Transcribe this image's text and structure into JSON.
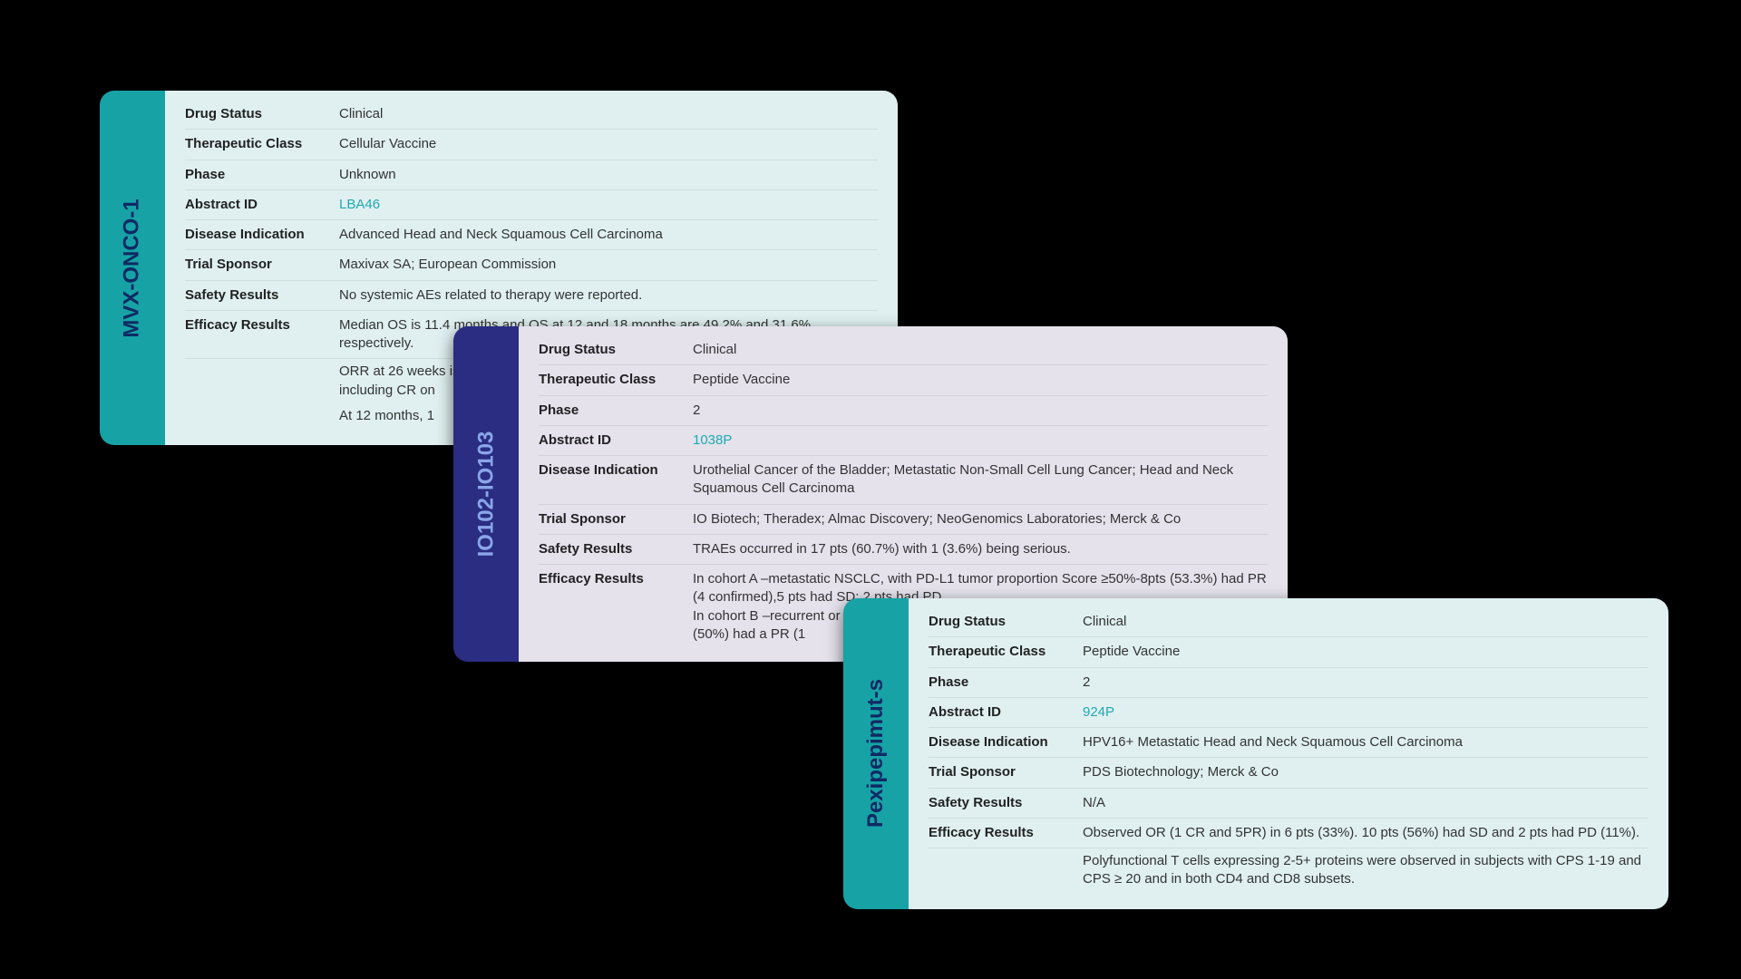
{
  "background_color": "#000000",
  "cards": [
    {
      "id": "card-0",
      "title": "MVX-ONCO-1",
      "tab_bg": "#17a2a6",
      "tab_text_color": "#0f2a63",
      "body_bg": "#e0f0f0",
      "link_color": "#1faab0",
      "rows": [
        {
          "label": "Drug Status",
          "value": "Clinical"
        },
        {
          "label": "Therapeutic Class",
          "value": "Cellular Vaccine"
        },
        {
          "label": "Phase",
          "value": "Unknown"
        },
        {
          "label": "Abstract ID",
          "value": "LBA46",
          "is_link": true
        },
        {
          "label": "Disease Indication",
          "value": "Advanced Head and Neck Squamous Cell Carcinoma"
        },
        {
          "label": "Trial Sponsor",
          "value": "Maxivax SA; European Commission"
        },
        {
          "label": "Safety Results",
          "value": "No systemic AEs related to therapy were reported."
        },
        {
          "label": "Efficacy Results",
          "value": "Median OS is 11.4 months and OS at 12 and 18 months are 49.2% and 31.6% respectively."
        }
      ],
      "efficacy_extra": [
        "ORR at 26 weeks is 12.5% & DCR at 6 weeks is 75% of pts. PR & CR were observed including CR on",
        "At 12 months, 1"
      ]
    },
    {
      "id": "card-1",
      "title": "IO102-IO103",
      "tab_bg": "#2a2d82",
      "tab_text_color": "#8aa5e8",
      "body_bg": "#e5e2ec",
      "link_color": "#1faab0",
      "rows": [
        {
          "label": "Drug Status",
          "value": "Clinical"
        },
        {
          "label": "Therapeutic Class",
          "value": "Peptide Vaccine"
        },
        {
          "label": "Phase",
          "value": "2"
        },
        {
          "label": "Abstract ID",
          "value": "1038P",
          "is_link": true
        },
        {
          "label": "Disease Indication",
          "value": "Urothelial Cancer of the Bladder; Metastatic Non-Small Cell Lung Cancer; Head and Neck Squamous Cell Carcinoma"
        },
        {
          "label": "Trial Sponsor",
          "value": "IO Biotech; Theradex; Almac Discovery; NeoGenomics Laboratories; Merck & Co"
        },
        {
          "label": "Safety Results",
          "value": "TRAEs occurred in 17 pts (60.7%) with 1 (3.6%) being serious."
        },
        {
          "label": "Efficacy Results",
          "value": "In cohort A –metastatic NSCLC, with PD-L1 tumor proportion Score ≥50%-8pts (53.3%) had PR (4 confirmed),5 pts had SD; 2 pts had PD.\nIn cohort B –recurrent or metastatic SCCHN with PD-L1 combined positive scores ≥20 –2 pts (50%) had a PR (1"
        }
      ],
      "efficacy_extra": []
    },
    {
      "id": "card-2",
      "title": "Pexipepimut-s",
      "tab_bg": "#17a2a6",
      "tab_text_color": "#0f2a63",
      "body_bg": "#e0f0f0",
      "link_color": "#1faab0",
      "rows": [
        {
          "label": "Drug Status",
          "value": "Clinical"
        },
        {
          "label": "Therapeutic Class",
          "value": "Peptide Vaccine"
        },
        {
          "label": "Phase",
          "value": "2"
        },
        {
          "label": "Abstract ID",
          "value": "924P",
          "is_link": true
        },
        {
          "label": "Disease Indication",
          "value": "HPV16+ Metastatic Head and Neck Squamous Cell Carcinoma"
        },
        {
          "label": "Trial Sponsor",
          "value": "PDS Biotechnology; Merck & Co"
        },
        {
          "label": "Safety Results",
          "value": "N/A"
        },
        {
          "label": "Efficacy Results",
          "value": "Observed OR (1 CR and 5PR) in 6 pts (33%). 10 pts (56%) had SD and 2 pts had PD (11%)."
        }
      ],
      "efficacy_extra": [
        "Polyfunctional T cells expressing 2-5+ proteins were observed in subjects with CPS 1-19 and CPS ≥ 20 and in both CD4 and CD8 subsets."
      ]
    }
  ]
}
